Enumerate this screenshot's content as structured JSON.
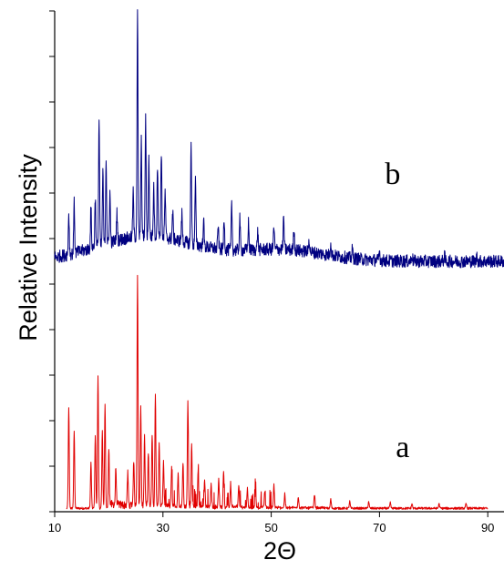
{
  "chart_data": {
    "type": "line",
    "title": "",
    "xlabel": "2Θ",
    "ylabel": "Relative Intensity",
    "xlim": [
      10,
      93
    ],
    "ylim": [
      0,
      11
    ],
    "x_ticks": [
      "10",
      "30",
      "50",
      "70",
      "90"
    ],
    "y_ticks_count": 12,
    "y_tick_labels_shown": false,
    "grid": false,
    "legend": "none",
    "series": [
      {
        "label": "a",
        "color": "#e00000",
        "x_range": [
          12.2,
          90
        ],
        "baseline": 0.05,
        "peaks": [
          [
            12.6,
            2.2
          ],
          [
            13.6,
            1.7
          ],
          [
            16.7,
            1.0
          ],
          [
            17.5,
            1.6
          ],
          [
            18.0,
            2.9
          ],
          [
            18.8,
            1.7
          ],
          [
            19.3,
            2.3
          ],
          [
            20.0,
            1.3
          ],
          [
            21.3,
            0.8
          ],
          [
            23.5,
            0.7
          ],
          [
            24.6,
            1.0
          ],
          [
            25.3,
            5.1
          ],
          [
            25.9,
            2.2
          ],
          [
            26.6,
            1.5
          ],
          [
            27.3,
            1.2
          ],
          [
            28.0,
            1.6
          ],
          [
            28.6,
            2.5
          ],
          [
            29.3,
            1.4
          ],
          [
            30.1,
            1.0
          ],
          [
            31.6,
            0.8
          ],
          [
            32.8,
            0.7
          ],
          [
            33.7,
            1.0
          ],
          [
            34.6,
            2.3
          ],
          [
            35.3,
            1.4
          ],
          [
            36.5,
            0.8
          ],
          [
            37.7,
            0.6
          ],
          [
            38.9,
            0.5
          ],
          [
            40.3,
            0.6
          ],
          [
            41.2,
            0.8
          ],
          [
            42.5,
            0.5
          ],
          [
            44.0,
            0.5
          ],
          [
            45.6,
            0.4
          ],
          [
            47.1,
            0.4
          ],
          [
            48.8,
            0.35
          ],
          [
            50.5,
            0.5
          ],
          [
            52.5,
            0.3
          ],
          [
            55.0,
            0.25
          ],
          [
            58.0,
            0.3
          ],
          [
            61.0,
            0.2
          ],
          [
            64.5,
            0.15
          ],
          [
            68.0,
            0.15
          ],
          [
            72.0,
            0.12
          ],
          [
            76.0,
            0.1
          ],
          [
            81.0,
            0.1
          ],
          [
            86.0,
            0.1
          ]
        ]
      },
      {
        "label": "b",
        "color": "#000080",
        "x_range": [
          10,
          93
        ],
        "baseline": 5.5,
        "peaks": [
          [
            12.6,
            0.9
          ],
          [
            13.6,
            1.1
          ],
          [
            16.7,
            0.9
          ],
          [
            17.5,
            1.1
          ],
          [
            18.2,
            2.8
          ],
          [
            18.9,
            1.6
          ],
          [
            19.5,
            1.9
          ],
          [
            20.2,
            1.1
          ],
          [
            21.5,
            0.6
          ],
          [
            24.5,
            1.0
          ],
          [
            25.3,
            4.9
          ],
          [
            26.0,
            2.1
          ],
          [
            26.8,
            2.6
          ],
          [
            27.4,
            1.7
          ],
          [
            28.3,
            1.1
          ],
          [
            29.0,
            1.6
          ],
          [
            29.7,
            1.9
          ],
          [
            30.4,
            1.0
          ],
          [
            31.8,
            0.6
          ],
          [
            33.5,
            0.6
          ],
          [
            35.2,
            2.2
          ],
          [
            36.0,
            1.4
          ],
          [
            37.5,
            0.6
          ],
          [
            40.2,
            0.5
          ],
          [
            41.3,
            0.7
          ],
          [
            42.7,
            1.0
          ],
          [
            44.2,
            0.7
          ],
          [
            45.8,
            0.6
          ],
          [
            47.5,
            0.4
          ],
          [
            50.5,
            0.5
          ],
          [
            52.3,
            0.7
          ],
          [
            54.2,
            0.5
          ],
          [
            57.0,
            0.3
          ],
          [
            61.0,
            0.3
          ],
          [
            65.0,
            0.2
          ],
          [
            70.0,
            0.2
          ],
          [
            76.0,
            0.15
          ],
          [
            82.0,
            0.12
          ],
          [
            88.0,
            0.1
          ]
        ]
      }
    ]
  }
}
